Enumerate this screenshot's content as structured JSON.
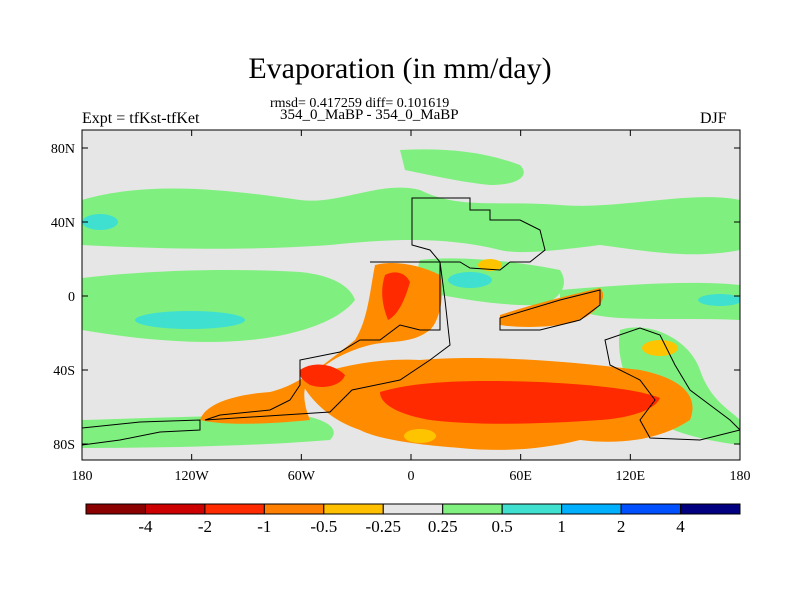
{
  "header": {
    "title": "Evaporation (in mm/day)",
    "stats": "rmsd= 0.417259 diff= 0.101619",
    "subtitle": "354_0_MaBP - 354_0_MaBP",
    "left_label": "Expt = tfKst-tfKet",
    "right_label": "DJF"
  },
  "map": {
    "lat_ticks": [
      "80N",
      "40N",
      "0",
      "40S",
      "80S"
    ],
    "lon_ticks": [
      "180",
      "120W",
      "60W",
      "0",
      "60E",
      "120E",
      "180"
    ],
    "colors": {
      "background": "#e6e6e6",
      "light_green": "#7ff07f",
      "cyan": "#40e0d0",
      "orange": "#ff8c00",
      "red": "#ff2a00",
      "yellow": "#ffc400",
      "coast": "#000000"
    }
  },
  "colorbar": {
    "labels": [
      "-4",
      "-2",
      "-1",
      "-0.5",
      "-0.25",
      "0.25",
      "0.5",
      "1",
      "2",
      "4"
    ],
    "colors": [
      "#8b0000",
      "#cc0000",
      "#ff2a00",
      "#ff8000",
      "#ffc000",
      "#e6e6e6",
      "#80f080",
      "#40e0d0",
      "#00b0ff",
      "#0050ff",
      "#000080"
    ]
  }
}
